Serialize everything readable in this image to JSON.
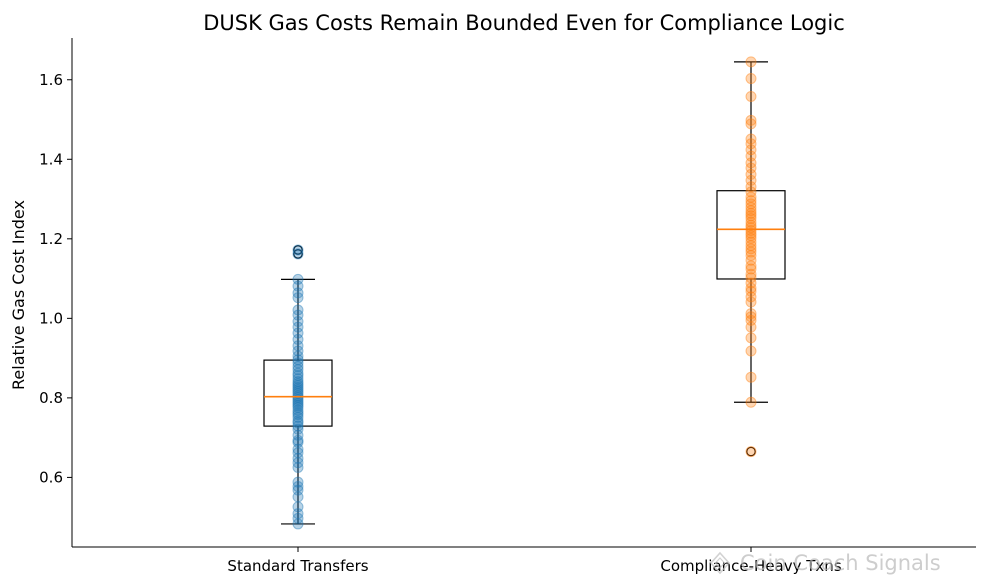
{
  "chart_data": {
    "type": "boxplot",
    "title": "DUSK Gas Costs Remain Bounded Even for Compliance Logic",
    "xlabel": "",
    "ylabel": "Relative Gas Cost Index",
    "ylim": [
      0.425,
      1.705
    ],
    "yticks": [
      "0.6",
      "0.8",
      "1.0",
      "1.2",
      "1.4",
      "1.6"
    ],
    "categories": [
      "Standard Transfers",
      "Compliance-Heavy Txns"
    ],
    "colors": {
      "standard": "#1f77b4",
      "compliance": "#ff7f0e",
      "median": "#ff7f0e",
      "box": "#000000"
    },
    "series": [
      {
        "name": "Standard Transfers",
        "box": {
          "whisker_low": 0.483,
          "q1": 0.729,
          "median": 0.803,
          "q3": 0.895,
          "whisker_high": 1.098
        },
        "outliers": [
          1.172,
          1.162
        ],
        "points": [
          0.483,
          0.497,
          0.509,
          0.526,
          0.551,
          0.568,
          0.577,
          0.588,
          0.625,
          0.637,
          0.648,
          0.662,
          0.671,
          0.688,
          0.693,
          0.706,
          0.721,
          0.729,
          0.737,
          0.742,
          0.751,
          0.758,
          0.763,
          0.769,
          0.776,
          0.781,
          0.786,
          0.791,
          0.796,
          0.801,
          0.805,
          0.811,
          0.816,
          0.821,
          0.826,
          0.831,
          0.836,
          0.841,
          0.848,
          0.856,
          0.862,
          0.871,
          0.879,
          0.888,
          0.896,
          0.905,
          0.918,
          0.931,
          0.947,
          0.963,
          0.978,
          0.992,
          1.008,
          1.021,
          1.052,
          1.064,
          1.081,
          1.098,
          1.162,
          1.172
        ]
      },
      {
        "name": "Compliance-Heavy Txns",
        "box": {
          "whisker_low": 0.789,
          "q1": 1.099,
          "median": 1.224,
          "q3": 1.321,
          "whisker_high": 1.645
        },
        "outliers": [
          0.665
        ],
        "points": [
          0.665,
          0.789,
          0.852,
          0.918,
          0.951,
          0.978,
          0.995,
          1.004,
          1.012,
          1.041,
          1.054,
          1.068,
          1.076,
          1.089,
          1.102,
          1.111,
          1.124,
          1.132,
          1.146,
          1.158,
          1.167,
          1.175,
          1.183,
          1.192,
          1.201,
          1.208,
          1.214,
          1.221,
          1.228,
          1.234,
          1.242,
          1.251,
          1.258,
          1.264,
          1.271,
          1.279,
          1.288,
          1.296,
          1.305,
          1.318,
          1.331,
          1.347,
          1.362,
          1.378,
          1.391,
          1.408,
          1.424,
          1.439,
          1.451,
          1.489,
          1.498,
          1.558,
          1.603,
          1.645
        ]
      }
    ]
  },
  "watermark": {
    "text": "Coin Coach Signals",
    "icon": "diamond-logo-icon"
  }
}
